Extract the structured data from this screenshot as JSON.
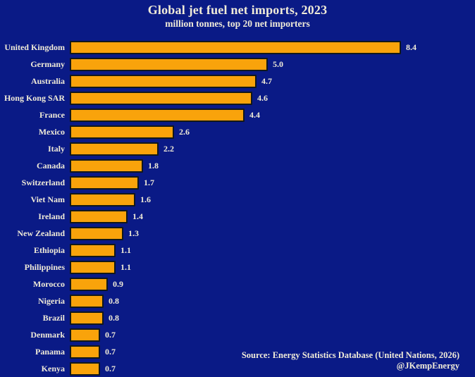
{
  "header": {
    "title": "Global jet fuel net imports, 2023",
    "subtitle": "million tonnes, top 20 net importers"
  },
  "footer": {
    "source": "Source: Energy Statistics Database (United Nations, 2026)",
    "credit": "@JKempEnergy"
  },
  "colors": {
    "background": "#0A1A86",
    "bar_fill": "#F9A30B",
    "bar_border": "#12181A",
    "text": "#F0EBD8"
  },
  "chart_data": {
    "type": "bar",
    "orientation": "horizontal",
    "title": "Global jet fuel net imports, 2023",
    "subtitle": "million tonnes, top 20 net importers",
    "categories": [
      "United Kingdom",
      "Germany",
      "Australia",
      "Hong Kong SAR",
      "France",
      "Mexico",
      "Italy",
      "Canada",
      "Switzerland",
      "Viet Nam",
      "Ireland",
      "New Zealand",
      "Ethiopia",
      "Philippines",
      "Morocco",
      "Nigeria",
      "Brazil",
      "Denmark",
      "Panama",
      "Kenya"
    ],
    "values": [
      8.4,
      5.0,
      4.7,
      4.6,
      4.4,
      2.6,
      2.2,
      1.8,
      1.7,
      1.6,
      1.4,
      1.3,
      1.1,
      1.1,
      0.9,
      0.8,
      0.8,
      0.7,
      0.7,
      0.7
    ],
    "value_labels": [
      "8.4",
      "5.0",
      "4.7",
      "4.6",
      "4.4",
      "2.6",
      "2.2",
      "1.8",
      "1.7",
      "1.6",
      "1.4",
      "1.3",
      "1.1",
      "1.1",
      "0.9",
      "0.8",
      "0.8",
      "0.7",
      "0.7",
      "0.7"
    ],
    "xlim": [
      0,
      8.4
    ],
    "xlabel": "",
    "ylabel": "",
    "grid": false,
    "legend": false,
    "data_labels": true
  }
}
